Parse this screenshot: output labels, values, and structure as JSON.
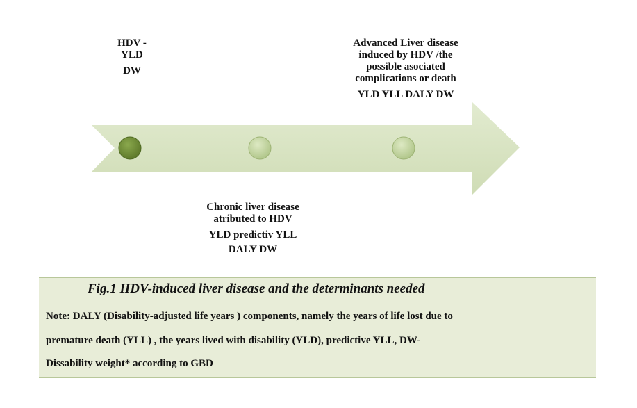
{
  "diagram": {
    "stages": [
      {
        "lines": [
          "HDV -",
          "YLD"
        ],
        "metrics": "DW"
      },
      {
        "lines": [
          "Chronic liver disease",
          "atributed to HDV"
        ],
        "metrics": [
          "YLD predictiv YLL",
          "DALY DW"
        ]
      },
      {
        "lines": [
          "Advanced Liver disease",
          "induced by HDV /the",
          "possible asociated",
          "complications or death"
        ],
        "metrics": "YLD YLL DALY DW"
      }
    ],
    "colors": {
      "arrow": "#d8e4c2",
      "dot_dark": "#6e8a35",
      "dot_light": "#c6d99e"
    }
  },
  "caption": {
    "title": "Fig.1 HDV-induced liver disease and the determinants needed",
    "note_lines": [
      "Note: DALY (Disability-adjusted life years ) components, namely the years of life lost due to",
      "premature death (YLL) , the years lived with disability (YLD), predictive YLL, DW-",
      "Dissability weight* according to GBD"
    ]
  }
}
